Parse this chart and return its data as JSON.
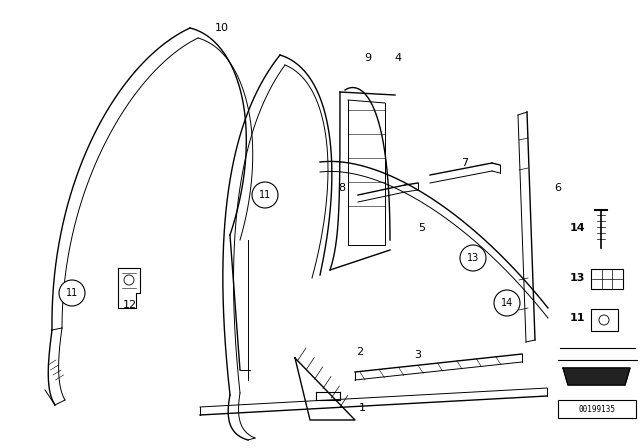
{
  "bg_color": "#ffffff",
  "line_color": "#000000",
  "watermark": "00199135"
}
